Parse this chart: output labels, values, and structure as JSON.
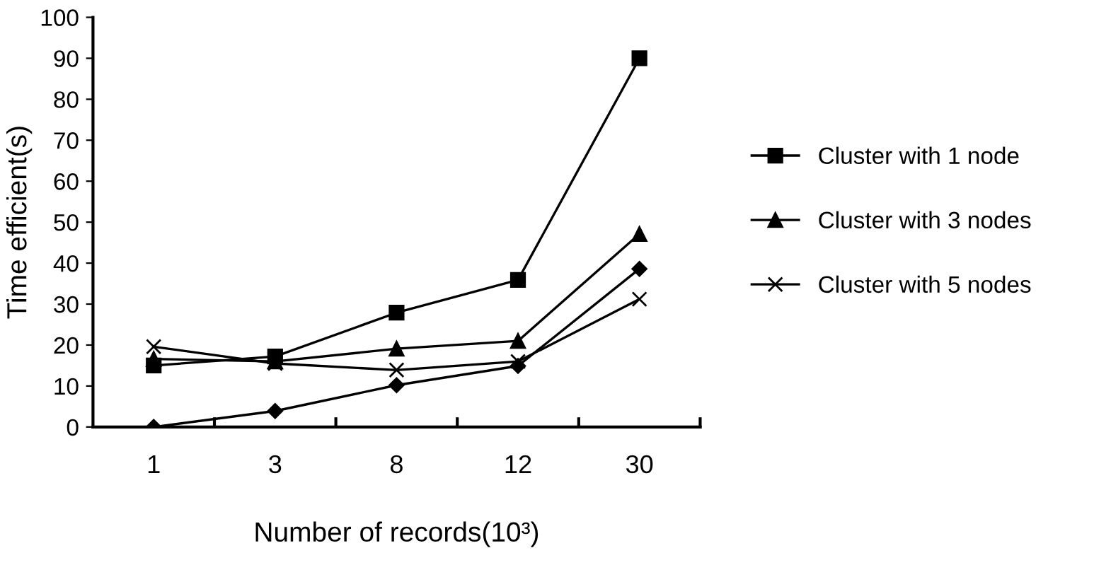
{
  "chart_data": {
    "type": "line",
    "xlabel": "Number of records(10³)",
    "ylabel": "Time efficient(s)",
    "categories": [
      "1",
      "3",
      "8",
      "12",
      "30"
    ],
    "ylim": [
      0,
      100
    ],
    "yticks": [
      0,
      10,
      20,
      30,
      40,
      50,
      60,
      70,
      80,
      90,
      100
    ],
    "grid": false,
    "legend": "right",
    "line_style": "solid",
    "series": [
      {
        "color": "#000000",
        "marker": "diamond",
        "values": [
          0,
          3.9,
          10.2,
          14.9,
          38.6
        ]
      },
      {
        "name": "Cluster with 1 node",
        "color": "#000000",
        "marker": "square",
        "values": [
          15,
          17.2,
          27.9,
          35.9,
          90
        ]
      },
      {
        "name": "Cluster with 3 nodes",
        "color": "#000000",
        "marker": "triangle",
        "values": [
          16.6,
          16,
          19.1,
          21,
          47.1
        ]
      },
      {
        "name": "Cluster with 5 nodes",
        "color": "#000000",
        "marker": "cross",
        "values": [
          19.6,
          15.5,
          13.9,
          16,
          31.2
        ]
      }
    ]
  }
}
